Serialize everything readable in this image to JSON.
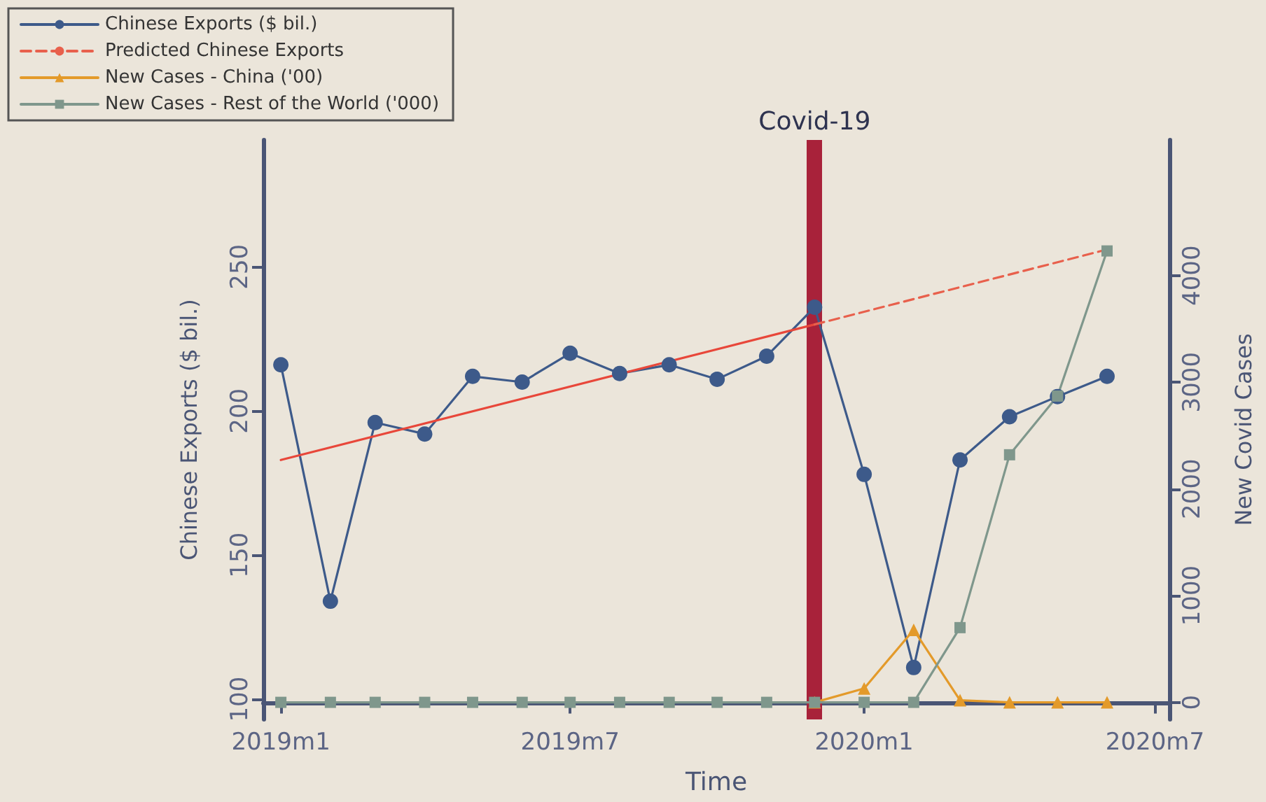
{
  "chart_data": {
    "type": "line",
    "xlabel": "Time",
    "ylabel": "Chinese Exports ($ bil.)",
    "y2label": "New Covid Cases",
    "x": [
      "2019-01",
      "2019-02",
      "2019-03",
      "2019-04",
      "2019-05",
      "2019-06",
      "2019-07",
      "2019-08",
      "2019-09",
      "2019-10",
      "2019-11",
      "2019-12",
      "2020-01",
      "2020-02",
      "2020-03",
      "2020-04",
      "2020-05",
      "2020-06"
    ],
    "xlim": [
      "2018-12-21",
      "2020-07-10"
    ],
    "xticks": [
      {
        "value": "2019-01",
        "label": "2019m1"
      },
      {
        "value": "2019-07",
        "label": "2019m7"
      },
      {
        "value": "2020-01",
        "label": "2020m1"
      },
      {
        "value": "2020-07",
        "label": "2020m7"
      }
    ],
    "ylim": [
      93,
      294
    ],
    "yticks": [
      100,
      150,
      200,
      250
    ],
    "y2lim": [
      -160,
      5270
    ],
    "y2ticks": [
      0,
      1000,
      2000,
      3000,
      4000
    ],
    "series": [
      {
        "name": "Chinese Exports ($ bil.)",
        "color": "#3d5a8a",
        "marker": "circle",
        "line_style": "solid",
        "values": [
          216,
          134,
          196,
          192,
          212,
          210,
          220,
          213,
          216,
          211,
          219,
          236,
          178,
          111,
          183,
          198,
          205,
          212
        ]
      },
      {
        "color": "#e8473a",
        "marker": "none",
        "line_style": "solid",
        "x": [
          "2019-01",
          "2019-12"
        ],
        "values": [
          183,
          230
        ]
      },
      {
        "name": "Predicted Chinese Exports",
        "color": "#e8604c",
        "marker": "none",
        "line_style": "dashed",
        "x": [
          "2019-12",
          "2020-06"
        ],
        "values": [
          230,
          256
        ]
      },
      {
        "name": "New Cases - China ('00)",
        "color": "#e39a2a",
        "marker": "triangle",
        "line_style": "solid",
        "axis": "y2",
        "values": [
          null,
          null,
          null,
          null,
          null,
          null,
          null,
          null,
          null,
          null,
          null,
          0,
          130,
          680,
          20,
          0,
          0,
          0
        ]
      },
      {
        "name": "New Cases - Rest of the World ('000)",
        "color": "#7f978c",
        "marker": "square",
        "line_style": "solid",
        "axis": "y2",
        "values": [
          0,
          0,
          0,
          0,
          0,
          0,
          0,
          0,
          0,
          0,
          0,
          0,
          0,
          0,
          700,
          2320,
          2870,
          4230
        ]
      }
    ],
    "ref_lines": [
      {
        "axis": "x",
        "value": "2019-12",
        "label": "Covid-19",
        "color": "#a8223a"
      }
    ],
    "grid": false,
    "legend": "top left"
  }
}
